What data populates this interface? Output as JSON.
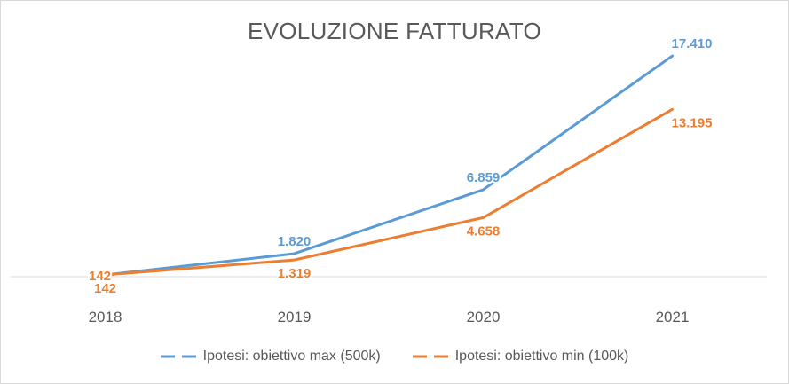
{
  "chart_data": {
    "type": "line",
    "title": "EVOLUZIONE FATTURATO",
    "categories": [
      "2018",
      "2019",
      "2020",
      "2021"
    ],
    "series": [
      {
        "name": "Ipotesi: obiettivo max (500k)",
        "color": "#5b9bd5",
        "values": [
          142,
          1820,
          6859,
          17410
        ],
        "labels": [
          "142",
          "1.820",
          "6.859",
          "17.410"
        ]
      },
      {
        "name": "Ipotesi: obiettivo min (100k)",
        "color": "#ed7d31",
        "values": [
          142,
          1319,
          4658,
          13195
        ],
        "labels": [
          "142",
          "1.319",
          "4.658",
          "13.195"
        ]
      }
    ],
    "ylim": [
      0,
      20000
    ],
    "grid": false,
    "legend_position": "bottom"
  }
}
